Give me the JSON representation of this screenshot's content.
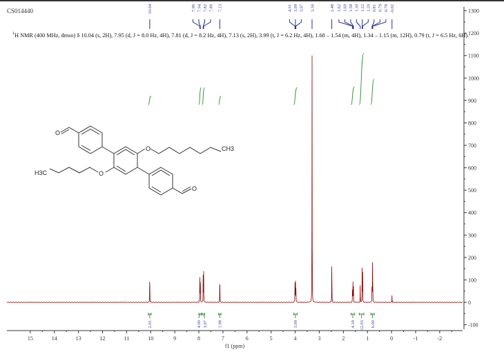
{
  "sample_id": "CS014440",
  "description": {
    "nucleus_sup": "1",
    "text": "H NMR (400 MHz, dmso) δ 10.04 (s, 2H), 7.95 (d, J = 8.0 Hz, 4H), 7.81 (d, J = 8.2 Hz, 4H), 7.13 (s, 2H), 3.99 (t, J = 6.2 Hz, 4H), 1.68 – 1.54 (m, 4H), 1.34 – 1.15 (m, 12H), 0.79 (t, J = 6.5 Hz, 6H)."
  },
  "molecule_labels": {
    "o1": "O",
    "o2": "O",
    "o3": "O",
    "o4": "O",
    "ch3": "CH3",
    "h3c": "H3C"
  },
  "colors": {
    "spectrum": "#8b0000",
    "integral": "#2e8b2e",
    "peak_label": "#3a3aa0",
    "axis": "#333333"
  },
  "chart_data": {
    "type": "line",
    "xlabel": "f1 (ppm)",
    "xlim": [
      15.97,
      -2.95
    ],
    "ylim": [
      -130,
      1320
    ],
    "x_ticks": [
      "15",
      "14",
      "13",
      "12",
      "11",
      "10",
      "9",
      "8",
      "7",
      "6",
      "5",
      "4",
      "3",
      "2",
      "1",
      "0",
      "-1",
      "-2"
    ],
    "y_ticks": [
      "1300",
      "1200",
      "1100",
      "1000",
      "900",
      "800",
      "700",
      "600",
      "500",
      "400",
      "300",
      "200",
      "100",
      "0",
      "-100"
    ],
    "peaks": [
      {
        "ppm": 10.04,
        "height": 150
      },
      {
        "ppm": 7.96,
        "height": 140
      },
      {
        "ppm": 7.94,
        "height": 140
      },
      {
        "ppm": 7.82,
        "height": 135
      },
      {
        "ppm": 7.8,
        "height": 135
      },
      {
        "ppm": 7.13,
        "height": 140
      },
      {
        "ppm": 4.01,
        "height": 90
      },
      {
        "ppm": 3.99,
        "height": 130
      },
      {
        "ppm": 3.97,
        "height": 90
      },
      {
        "ppm": 3.3,
        "height": 1130
      },
      {
        "ppm": 2.48,
        "height": 215
      },
      {
        "ppm": 1.62,
        "height": 70
      },
      {
        "ppm": 1.6,
        "height": 90
      },
      {
        "ppm": 1.58,
        "height": 70
      },
      {
        "ppm": 1.3,
        "height": 75
      },
      {
        "ppm": 1.22,
        "height": 160
      },
      {
        "ppm": 1.2,
        "height": 130
      },
      {
        "ppm": 0.81,
        "height": 90
      },
      {
        "ppm": 0.79,
        "height": 175
      },
      {
        "ppm": 0.78,
        "height": 90
      },
      {
        "ppm": -0.02,
        "height": 35
      }
    ],
    "peak_label_groups": [
      [
        "10.04"
      ],
      [
        "7.96",
        "7.94",
        "7.82",
        "7.80"
      ],
      [
        "7.13"
      ],
      [
        "4.01",
        "3.99",
        "3.97"
      ],
      [
        "3.30"
      ],
      [
        "2.48"
      ],
      [
        "1.62",
        "1.60",
        "1.58",
        "1.30",
        "1.22",
        "1.20",
        "0.81",
        "0.79",
        "0.78"
      ],
      [
        "-0.02"
      ]
    ],
    "integrals": [
      {
        "from": 10.1,
        "to": 9.98,
        "value": "2.01"
      },
      {
        "from": 8.0,
        "to": 7.9,
        "value": "4.00"
      },
      {
        "from": 7.86,
        "to": 7.76,
        "value": "3.97"
      },
      {
        "from": 7.18,
        "to": 7.08,
        "value": "1.98"
      },
      {
        "from": 4.06,
        "to": 3.92,
        "value": "3.99"
      },
      {
        "from": 1.68,
        "to": 1.54,
        "value": "4.18"
      },
      {
        "from": 1.34,
        "to": 1.15,
        "value": "12.03"
      },
      {
        "from": 0.86,
        "to": 0.72,
        "value": "6.00"
      }
    ]
  }
}
